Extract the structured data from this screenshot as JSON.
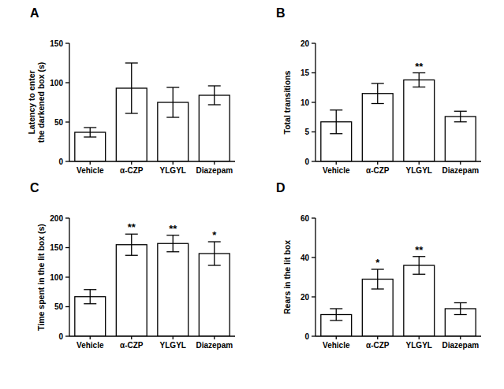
{
  "chart_data": [
    {
      "type": "bar",
      "title": "A",
      "y_label": "Latency to enter\nthe darkened box (s)",
      "categories": [
        "Vehicle",
        "α-CZP",
        "YLGYL",
        "Diazepam"
      ],
      "values": [
        37,
        93,
        75,
        84
      ],
      "errors": [
        6,
        32,
        19,
        12
      ],
      "annotations": [
        null,
        null,
        null,
        null
      ],
      "color": "#ffffff",
      "ylim": [
        0,
        150
      ],
      "yticks": [
        0,
        50,
        100,
        150
      ],
      "grid": false
    },
    {
      "type": "bar",
      "title": "B",
      "y_label": "Total transitions",
      "categories": [
        "Vehicle",
        "α-CZP",
        "YLGYL",
        "Diazepam"
      ],
      "values": [
        6.7,
        11.5,
        13.8,
        7.6
      ],
      "errors": [
        2,
        1.7,
        1.2,
        0.9
      ],
      "annotations": [
        null,
        null,
        "**",
        null
      ],
      "color": "#ffffff",
      "ylim": [
        0,
        20
      ],
      "yticks": [
        0,
        5,
        10,
        15,
        20
      ],
      "grid": false
    },
    {
      "type": "bar",
      "title": "C",
      "y_label": "Time spent in the lit box (s)",
      "categories": [
        "Vehicle",
        "α-CZP",
        "YLGYL",
        "Diazepam"
      ],
      "values": [
        67,
        155,
        157,
        140
      ],
      "errors": [
        12,
        18,
        14,
        20
      ],
      "annotations": [
        null,
        "**",
        "**",
        "*"
      ],
      "color": "#ffffff",
      "ylim": [
        0,
        200
      ],
      "yticks": [
        0,
        50,
        100,
        150,
        200
      ],
      "grid": false
    },
    {
      "type": "bar",
      "title": "D",
      "y_label": "Rears in the lit box",
      "categories": [
        "Vehicle",
        "α-CZP",
        "YLGYL",
        "Diazepam"
      ],
      "values": [
        11,
        29,
        36,
        14
      ],
      "errors": [
        3,
        5,
        4.5,
        3
      ],
      "annotations": [
        null,
        "*",
        "**",
        null
      ],
      "color": "#ffffff",
      "ylim": [
        0,
        60
      ],
      "yticks": [
        0,
        20,
        40,
        60
      ],
      "grid": false
    }
  ]
}
